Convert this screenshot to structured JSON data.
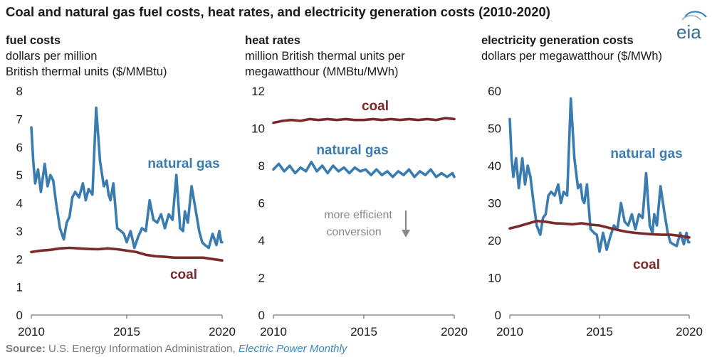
{
  "title": "Coal and natural gas fuel costs, heat rates, and electricity generation costs (2010-2020)",
  "logo_text": "eia",
  "source": {
    "prefix": "Source:",
    "agency": " U.S. Energy Information Administration, ",
    "publication": "Electric Power Monthly"
  },
  "colors": {
    "natural_gas": "#3a7cb0",
    "coal": "#7a2a2a",
    "axis": "#555555",
    "annotation": "#888888"
  },
  "panels": [
    {
      "heading": "fuel costs",
      "unit_line1": "dollars per million",
      "unit_line2": "British thermal units ($/MMBtu)"
    },
    {
      "heading": "heat rates",
      "unit_line1": "million British thermal units per",
      "unit_line2": "megawatthour (MMBtu/MWh)",
      "annotation_line1": "more efficient",
      "annotation_line2": "conversion"
    },
    {
      "heading": "electricity generation costs",
      "unit_line1": "dollars per megawatthour ($/MWh)"
    }
  ],
  "chart_data": [
    {
      "type": "line",
      "title": "fuel costs",
      "ylabel": "dollars per million British thermal units ($/MMBtu)",
      "xlim": [
        2010,
        2020
      ],
      "ylim": [
        0,
        8
      ],
      "xticks": [
        "2010",
        "2015",
        "2020"
      ],
      "yticks": [
        "0",
        "1",
        "2",
        "3",
        "4",
        "5",
        "6",
        "7",
        "8"
      ],
      "series": [
        {
          "name": "natural gas",
          "x": [
            2010,
            2010.1,
            2010.2,
            2010.35,
            2010.5,
            2010.7,
            2010.85,
            2011,
            2011.15,
            2011.3,
            2011.5,
            2011.7,
            2011.85,
            2012,
            2012.15,
            2012.3,
            2012.5,
            2012.7,
            2012.85,
            2013,
            2013.2,
            2013.4,
            2013.6,
            2013.8,
            2013.95,
            2014.05,
            2014.15,
            2014.3,
            2014.5,
            2014.7,
            2014.85,
            2015,
            2015.2,
            2015.4,
            2015.6,
            2015.8,
            2016,
            2016.2,
            2016.4,
            2016.6,
            2016.8,
            2017,
            2017.2,
            2017.4,
            2017.6,
            2017.8,
            2017.95,
            2018.05,
            2018.2,
            2018.4,
            2018.6,
            2018.8,
            2018.95,
            2019.1,
            2019.3,
            2019.5,
            2019.7,
            2019.85,
            2019.95,
            2020
          ],
          "values": [
            6.7,
            5.5,
            4.7,
            5.2,
            4.4,
            5.4,
            4.6,
            5.0,
            4.8,
            4.0,
            3.1,
            2.7,
            3.3,
            3.5,
            4.2,
            4.4,
            4.2,
            4.7,
            4.1,
            4.5,
            4.3,
            7.4,
            5.5,
            4.6,
            4.8,
            4.3,
            4.1,
            4.7,
            3.1,
            3.0,
            2.9,
            2.6,
            3.0,
            2.4,
            2.8,
            3.1,
            3.0,
            4.1,
            3.4,
            3.3,
            3.6,
            3.1,
            3.6,
            3.4,
            5.0,
            3.1,
            3.0,
            3.7,
            3.3,
            4.6,
            3.8,
            3.0,
            2.6,
            2.5,
            2.4,
            2.9,
            2.5,
            3.0,
            2.6,
            2.6
          ]
        },
        {
          "name": "coal",
          "x": [
            2010,
            2010.5,
            2011,
            2011.5,
            2012,
            2012.5,
            2013,
            2013.5,
            2014,
            2014.5,
            2015,
            2015.5,
            2016,
            2016.5,
            2017,
            2017.5,
            2018,
            2018.5,
            2019,
            2019.5,
            2020
          ],
          "values": [
            2.25,
            2.3,
            2.33,
            2.38,
            2.4,
            2.38,
            2.36,
            2.35,
            2.38,
            2.35,
            2.3,
            2.25,
            2.15,
            2.1,
            2.08,
            2.05,
            2.05,
            2.05,
            2.05,
            2.0,
            1.95
          ]
        }
      ]
    },
    {
      "type": "line",
      "title": "heat rates",
      "ylabel": "million British thermal units per megawatthour (MMBtu/MWh)",
      "xlim": [
        2010,
        2020
      ],
      "ylim": [
        0,
        12
      ],
      "xticks": [
        "2010",
        "2015",
        "2020"
      ],
      "yticks": [
        "0",
        "2",
        "4",
        "6",
        "8",
        "10",
        "12"
      ],
      "series": [
        {
          "name": "coal",
          "x": [
            2010,
            2010.5,
            2011,
            2011.5,
            2012,
            2012.5,
            2013,
            2013.5,
            2014,
            2014.5,
            2015,
            2015.5,
            2016,
            2016.5,
            2017,
            2017.5,
            2018,
            2018.5,
            2019,
            2019.5,
            2020
          ],
          "values": [
            10.3,
            10.4,
            10.45,
            10.4,
            10.5,
            10.45,
            10.5,
            10.45,
            10.5,
            10.45,
            10.45,
            10.5,
            10.45,
            10.5,
            10.45,
            10.5,
            10.45,
            10.5,
            10.45,
            10.55,
            10.5
          ]
        },
        {
          "name": "natural gas",
          "x": [
            2010,
            2010.3,
            2010.6,
            2010.9,
            2011.2,
            2011.5,
            2011.8,
            2012.1,
            2012.4,
            2012.7,
            2013,
            2013.3,
            2013.6,
            2013.9,
            2014.2,
            2014.5,
            2014.8,
            2015.1,
            2015.4,
            2015.7,
            2016,
            2016.3,
            2016.6,
            2016.9,
            2017.2,
            2017.5,
            2017.8,
            2018.1,
            2018.4,
            2018.7,
            2019,
            2019.3,
            2019.6,
            2019.9,
            2020
          ],
          "values": [
            7.8,
            8.1,
            7.7,
            8.0,
            7.6,
            7.9,
            7.7,
            8.2,
            7.7,
            8.0,
            7.6,
            8.0,
            7.7,
            7.9,
            7.6,
            7.9,
            7.7,
            7.8,
            7.5,
            7.8,
            7.5,
            7.7,
            7.4,
            7.7,
            7.5,
            7.8,
            7.4,
            7.7,
            7.5,
            7.8,
            7.4,
            7.6,
            7.4,
            7.6,
            7.4
          ]
        }
      ]
    },
    {
      "type": "line",
      "title": "electricity generation costs",
      "ylabel": "dollars per megawatthour ($/MWh)",
      "xlim": [
        2010,
        2020
      ],
      "ylim": [
        0,
        60
      ],
      "xticks": [
        "2010",
        "2015",
        "2020"
      ],
      "yticks": [
        "0",
        "10",
        "20",
        "30",
        "40",
        "50",
        "60"
      ],
      "series": [
        {
          "name": "natural gas",
          "x": [
            2010,
            2010.1,
            2010.2,
            2010.35,
            2010.5,
            2010.7,
            2010.85,
            2011,
            2011.15,
            2011.3,
            2011.5,
            2011.7,
            2011.85,
            2012,
            2012.15,
            2012.3,
            2012.5,
            2012.7,
            2012.85,
            2013,
            2013.2,
            2013.4,
            2013.6,
            2013.8,
            2013.95,
            2014.05,
            2014.15,
            2014.3,
            2014.5,
            2014.7,
            2014.85,
            2015,
            2015.2,
            2015.4,
            2015.6,
            2015.8,
            2016,
            2016.2,
            2016.4,
            2016.6,
            2016.8,
            2017,
            2017.2,
            2017.4,
            2017.6,
            2017.8,
            2017.95,
            2018.05,
            2018.2,
            2018.4,
            2018.6,
            2018.8,
            2018.95,
            2019.1,
            2019.3,
            2019.5,
            2019.7,
            2019.85,
            2019.95,
            2020
          ],
          "values": [
            52.5,
            42,
            37,
            42,
            34,
            42,
            35,
            40,
            37,
            31,
            24,
            21.5,
            26,
            27,
            32,
            33,
            32,
            35,
            30,
            33,
            32,
            58,
            42,
            34,
            35,
            31,
            30,
            35,
            23,
            22,
            21.5,
            17,
            22,
            17.5,
            21,
            24,
            23,
            30,
            25,
            24,
            27,
            23,
            27,
            26,
            38,
            24,
            22,
            27,
            24,
            34.5,
            28,
            22,
            19.5,
            19,
            18.5,
            22,
            19,
            22,
            19.5,
            19.5
          ]
        },
        {
          "name": "coal",
          "x": [
            2010,
            2010.5,
            2011,
            2011.5,
            2012,
            2012.5,
            2013,
            2013.5,
            2014,
            2014.5,
            2015,
            2015.5,
            2016,
            2016.5,
            2017,
            2017.5,
            2018,
            2018.5,
            2019,
            2019.5,
            2020
          ],
          "values": [
            23.2,
            23.8,
            24.5,
            25.2,
            25,
            24.6,
            24.5,
            24.3,
            24.6,
            24.2,
            24,
            23.4,
            22.8,
            22.3,
            22,
            21.8,
            21.6,
            21.5,
            21.5,
            21.2,
            20.8
          ]
        }
      ]
    }
  ]
}
